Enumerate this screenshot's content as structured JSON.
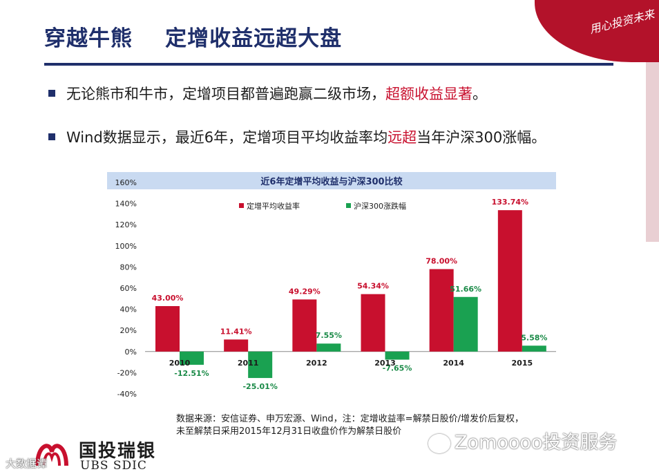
{
  "title": "穿越牛熊    定增收益远超大盘",
  "corner_logo": {
    "text": "用心投资未来",
    "icon": "ubs-sdic-corner-banner"
  },
  "bullets": [
    {
      "text": "无论熊市和牛市，定增项目都普遍跑赢二级市场，",
      "highlight": "超额收益显著",
      "suffix": "。"
    },
    {
      "text": "Wind数据显示，最近6年，定增项目平均收益率均",
      "highlight": "远超",
      "suffix": "当年沪深300涨幅。"
    }
  ],
  "chart_data": {
    "type": "bar",
    "title": "近6年定增平均收益与沪深300比较",
    "categories": [
      "2010",
      "2011",
      "2012",
      "2013",
      "2014",
      "2015"
    ],
    "series": [
      {
        "name": "定增平均收益率",
        "values": [
          43.0,
          11.41,
          49.29,
          54.34,
          78.0,
          133.74
        ],
        "labels": [
          "43.00%",
          "11.41%",
          "49.29%",
          "54.34%",
          "78.00%",
          "133.74%"
        ],
        "color": "#c8102e"
      },
      {
        "name": "沪深300涨跌幅",
        "values": [
          -12.51,
          -25.01,
          7.55,
          -7.65,
          51.66,
          5.58
        ],
        "labels": [
          "-12.51%",
          "-25.01%",
          "7.55%",
          "-7.65%",
          "51.66%",
          "5.58%"
        ],
        "color": "#1aa151"
      }
    ],
    "ylim": [
      -40,
      160
    ],
    "yticks": [
      "-40%",
      "-20%",
      "0%",
      "20%",
      "40%",
      "60%",
      "80%",
      "100%",
      "120%",
      "140%",
      "160%"
    ],
    "ytick_values": [
      -40,
      -20,
      0,
      20,
      40,
      60,
      80,
      100,
      120,
      140,
      160
    ],
    "legend_position": "top-left",
    "title_band_color": "#c9daf1"
  },
  "note": {
    "line1": "数据来源：安信证券、申万宏源、Wind，注：定增收益率=解禁日股价/增发价后复权，",
    "line2": "未至解禁日采用2015年12月31日收盘价作为解禁日股价"
  },
  "bottom_logo": {
    "cn": "国投瑞银",
    "en": "UBS SDIC"
  },
  "watermarks": {
    "left": "大数据谭",
    "right": "Zomoooo投资服务"
  }
}
